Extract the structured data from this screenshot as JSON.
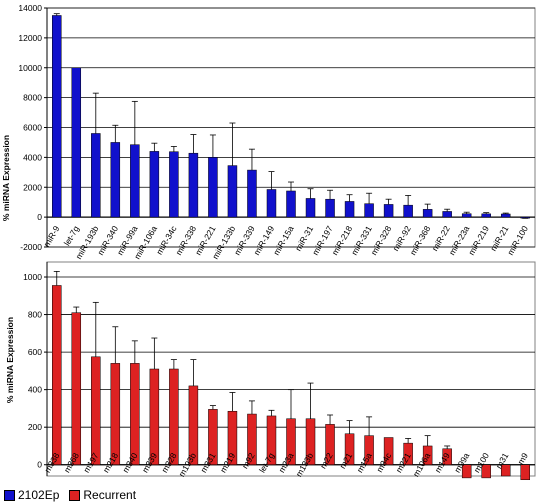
{
  "chart_data": [
    {
      "type": "bar",
      "ylabel": "% miRNA Expression",
      "ylim": [
        -2000,
        14000
      ],
      "yticks": [
        -2000,
        0,
        2000,
        4000,
        6000,
        8000,
        10000,
        12000,
        14000
      ],
      "grid": true,
      "bar_color": "#1111cc",
      "categories": [
        "miR-9",
        "let-7g",
        "miR-193b",
        "miR-340",
        "miR-99a",
        "miR-106a",
        "miR-34c",
        "miR-338",
        "miR-221",
        "miR-133b",
        "miR-339",
        "miR-149",
        "miR-15a",
        "miR-31",
        "miR-197",
        "miR-218",
        "miR-331",
        "miR-328",
        "miR-92",
        "miR-368",
        "miR-22",
        "miR-23a",
        "miR-219",
        "miR-21",
        "miR-100"
      ],
      "values": [
        13500,
        10000,
        5600,
        5000,
        4850,
        4400,
        4380,
        4280,
        4000,
        3450,
        3150,
        1850,
        1750,
        1250,
        1200,
        1050,
        900,
        850,
        800,
        520,
        380,
        230,
        220,
        210,
        -40
      ],
      "errors": [
        120,
        0,
        2700,
        1150,
        2900,
        550,
        350,
        1250,
        1500,
        2850,
        1400,
        1200,
        600,
        650,
        600,
        450,
        700,
        350,
        650,
        350,
        150,
        100,
        80,
        60,
        40
      ]
    },
    {
      "type": "bar",
      "ylabel": "% miRNA Expression",
      "ylim": [
        -60,
        1080
      ],
      "yticks": [
        0,
        200,
        400,
        600,
        800,
        1000
      ],
      "grid": true,
      "bar_color": "#dd2222",
      "categories": [
        "m338",
        "m368",
        "m197",
        "m218",
        "m340",
        "m339",
        "m328",
        "m193b",
        "m331",
        "m219",
        "m92",
        "let-7g",
        "m23a",
        "m133b",
        "m22",
        "m21",
        "m15a",
        "m34c",
        "m221",
        "m106a",
        "m149",
        "m99a",
        "m100",
        "m31",
        "m9"
      ],
      "values": [
        955,
        810,
        575,
        540,
        540,
        510,
        510,
        420,
        295,
        285,
        270,
        260,
        245,
        245,
        215,
        165,
        155,
        145,
        115,
        100,
        85,
        -70,
        -70,
        -60,
        -80
      ],
      "errors": [
        75,
        30,
        290,
        195,
        120,
        165,
        50,
        140,
        20,
        100,
        70,
        30,
        155,
        190,
        50,
        70,
        100,
        0,
        25,
        55,
        15,
        0,
        0,
        0,
        0
      ]
    }
  ],
  "legend": {
    "items": [
      {
        "label": "2102Ep",
        "color": "#1111cc"
      },
      {
        "label": "Recurrent",
        "color": "#dd2222"
      }
    ]
  }
}
